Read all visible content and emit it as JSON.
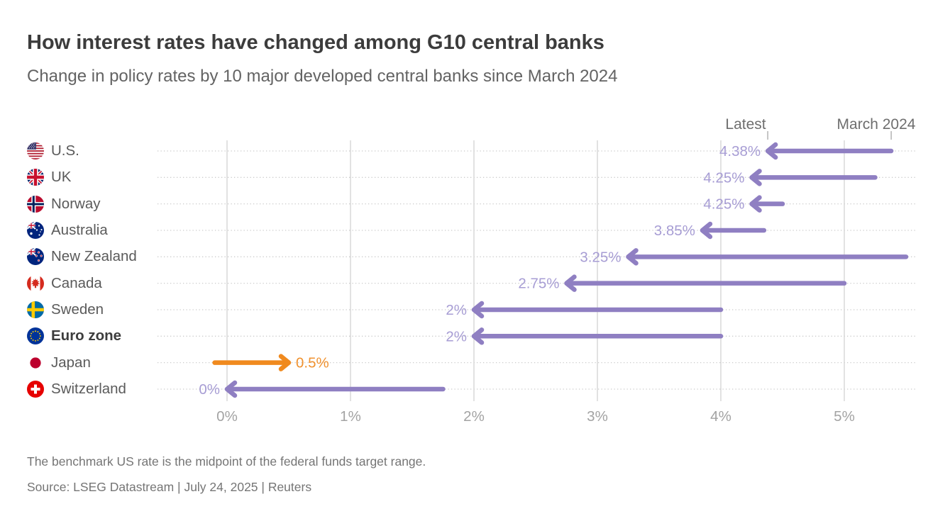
{
  "chart_data": {
    "type": "arrow",
    "title": "How interest rates have changed among G10 central banks",
    "subtitle": "Change in policy rates by 10 major developed central banks since March 2024",
    "annotations": {
      "latest": {
        "label": "Latest",
        "value": 4.38
      },
      "march": {
        "label": "March 2024",
        "value": 5.38
      }
    },
    "rows": [
      {
        "id": "us",
        "country": "U.S.",
        "flag": "us",
        "latest": 4.38,
        "march_2024": 5.38,
        "label": "4.38%",
        "color": "purple",
        "emphasis": false
      },
      {
        "id": "uk",
        "country": "UK",
        "flag": "uk",
        "latest": 4.25,
        "march_2024": 5.25,
        "label": "4.25%",
        "color": "purple",
        "emphasis": false
      },
      {
        "id": "norway",
        "country": "Norway",
        "flag": "no",
        "latest": 4.25,
        "march_2024": 4.5,
        "label": "4.25%",
        "color": "purple",
        "emphasis": false
      },
      {
        "id": "australia",
        "country": "Australia",
        "flag": "au",
        "latest": 3.85,
        "march_2024": 4.35,
        "label": "3.85%",
        "color": "purple",
        "emphasis": false
      },
      {
        "id": "new-zealand",
        "country": "New Zealand",
        "flag": "nz",
        "latest": 3.25,
        "march_2024": 5.5,
        "label": "3.25%",
        "color": "purple",
        "emphasis": false
      },
      {
        "id": "canada",
        "country": "Canada",
        "flag": "ca",
        "latest": 2.75,
        "march_2024": 5.0,
        "label": "2.75%",
        "color": "purple",
        "emphasis": false
      },
      {
        "id": "sweden",
        "country": "Sweden",
        "flag": "se",
        "latest": 2.0,
        "march_2024": 4.0,
        "label": "2%",
        "color": "purple",
        "emphasis": false
      },
      {
        "id": "euro-zone",
        "country": "Euro zone",
        "flag": "eu",
        "latest": 2.0,
        "march_2024": 4.0,
        "label": "2%",
        "color": "purple",
        "emphasis": true
      },
      {
        "id": "japan",
        "country": "Japan",
        "flag": "jp",
        "latest": 0.5,
        "march_2024": -0.1,
        "label": "0.5%",
        "color": "orange",
        "emphasis": false
      },
      {
        "id": "switzerland",
        "country": "Switzerland",
        "flag": "ch",
        "latest": 0.0,
        "march_2024": 1.75,
        "label": "0%",
        "color": "purple",
        "emphasis": false
      }
    ],
    "x_axis": {
      "ticks": [
        {
          "label": "0%",
          "value": 0
        },
        {
          "label": "1%",
          "value": 1
        },
        {
          "label": "2%",
          "value": 2
        },
        {
          "label": "3%",
          "value": 3
        },
        {
          "label": "4%",
          "value": 4
        },
        {
          "label": "5%",
          "value": 5
        }
      ],
      "grid": true,
      "range_shown": [
        -0.55,
        5.85
      ]
    },
    "colors": {
      "purple": "#8F7FC2",
      "purple_label": "#A79DD4",
      "orange": "#F08A1E",
      "orange_label": "#F0912E"
    }
  },
  "footer": {
    "note": "The benchmark US rate is the midpoint of the federal funds target range.",
    "source": "Source: LSEG Datastream | July 24, 2025 | Reuters"
  }
}
